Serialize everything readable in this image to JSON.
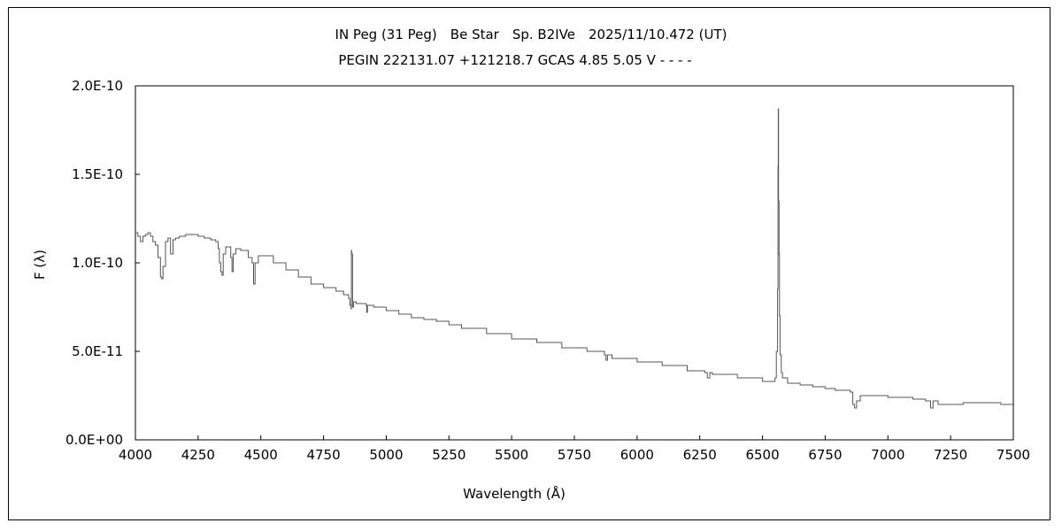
{
  "chart_data": {
    "type": "line",
    "title": "IN Peg (31 Peg)　Be Star　Sp. B2IVe　2025/11/10.472 (UT)",
    "subtitle": "PEGIN 222131.07 +121218.7 GCAS 4.85 5.05 V - - - -",
    "xlabel": "Wavelength (Å)",
    "ylabel": "F (λ)",
    "xlim": [
      4000,
      7500
    ],
    "ylim": [
      0,
      2e-10
    ],
    "x_ticks": [
      4000,
      4250,
      4500,
      4750,
      5000,
      5250,
      5500,
      5750,
      6000,
      6250,
      6500,
      6750,
      7000,
      7250,
      7500
    ],
    "x_tick_labels": [
      "4000",
      "4250",
      "4500",
      "4750",
      "5000",
      "5250",
      "5500",
      "5750",
      "6000",
      "6250",
      "6500",
      "6750",
      "7000",
      "7250",
      "7500"
    ],
    "y_ticks": [
      0,
      5e-11,
      1e-10,
      1.5e-10,
      2e-10
    ],
    "y_tick_labels": [
      "0.0E+00",
      "5.0E-11",
      "1.0E-10",
      "1.5E-10",
      "2.0E-10"
    ],
    "grid": false,
    "legend": "none",
    "line_color": "#555555",
    "series": [
      {
        "x": [
          4000,
          4010,
          4020,
          4030,
          4040,
          4050,
          4060,
          4070,
          4080,
          4090,
          4100,
          4105,
          4110,
          4120,
          4130,
          4140,
          4150,
          4160,
          4175,
          4200,
          4225,
          4250,
          4275,
          4300,
          4320,
          4330,
          4335,
          4340,
          4345,
          4350,
          4360,
          4370,
          4380,
          4385,
          4390,
          4400,
          4420,
          4450,
          4465,
          4471,
          4477,
          4490,
          4500,
          4550,
          4600,
          4650,
          4700,
          4750,
          4800,
          4830,
          4850,
          4855,
          4860,
          4861,
          4862,
          4866,
          4870,
          4880,
          4900,
          4920,
          4922,
          4925,
          4950,
          5000,
          5050,
          5100,
          5150,
          5200,
          5250,
          5300,
          5400,
          5500,
          5600,
          5700,
          5800,
          5870,
          5876,
          5882,
          5900,
          6000,
          6100,
          6200,
          6270,
          6280,
          6290,
          6300,
          6400,
          6500,
          6540,
          6550,
          6555,
          6560,
          6562,
          6563,
          6564,
          6566,
          6568,
          6570,
          6575,
          6580,
          6600,
          6650,
          6700,
          6750,
          6790,
          6850,
          6860,
          6867,
          6875,
          6890,
          6950,
          7000,
          7100,
          7150,
          7170,
          7180,
          7200,
          7250,
          7300,
          7350,
          7400,
          7450,
          7500
        ],
        "y": [
          1.17e-10,
          1.15e-10,
          1.12e-10,
          1.15e-10,
          1.16e-10,
          1.17e-10,
          1.15e-10,
          1.12e-10,
          1.1e-10,
          1.03e-10,
          9.2e-11,
          9.1e-11,
          9.8e-11,
          1.12e-10,
          1.14e-10,
          1.05e-10,
          1.13e-10,
          1.14e-10,
          1.15e-10,
          1.16e-10,
          1.16e-10,
          1.15e-10,
          1.14e-10,
          1.13e-10,
          1.12e-10,
          1.08e-10,
          1e-10,
          9.5e-11,
          9.3e-11,
          1.05e-10,
          1.09e-10,
          1.09e-10,
          1.03e-10,
          9.5e-11,
          1.05e-10,
          1.08e-10,
          1.07e-10,
          1.03e-10,
          1e-10,
          8.8e-11,
          1e-10,
          1.04e-10,
          1.04e-10,
          1e-10,
          9.6e-11,
          9.2e-11,
          8.8e-11,
          8.6e-11,
          8.4e-11,
          8.2e-11,
          8e-11,
          7.6e-11,
          7.4e-11,
          1.07e-10,
          1.05e-10,
          7.5e-11,
          7.8e-11,
          7.7e-11,
          7.7e-11,
          7.6e-11,
          7.2e-11,
          7.6e-11,
          7.5e-11,
          7.3e-11,
          7.1e-11,
          6.9e-11,
          6.8e-11,
          6.7e-11,
          6.5e-11,
          6.3e-11,
          6e-11,
          5.7e-11,
          5.5e-11,
          5.2e-11,
          5e-11,
          4.8e-11,
          4.5e-11,
          4.8e-11,
          4.6e-11,
          4.4e-11,
          4.2e-11,
          3.9e-11,
          3.8e-11,
          3.5e-11,
          3.8e-11,
          3.7e-11,
          3.5e-11,
          3.3e-11,
          3.3e-11,
          3.5e-11,
          5e-11,
          8.5e-11,
          1.55e-10,
          1.87e-10,
          1.35e-10,
          1.05e-10,
          7e-11,
          4.8e-11,
          3.8e-11,
          3.5e-11,
          3.2e-11,
          3.1e-11,
          3e-11,
          2.9e-11,
          2.8e-11,
          2.7e-11,
          2e-11,
          1.8e-11,
          2.2e-11,
          2.5e-11,
          2.5e-11,
          2.4e-11,
          2.3e-11,
          2.2e-11,
          1.8e-11,
          2.2e-11,
          2e-11,
          2e-11,
          2.1e-11,
          2.1e-11,
          2.1e-11,
          2e-11,
          2e-11
        ]
      }
    ]
  }
}
